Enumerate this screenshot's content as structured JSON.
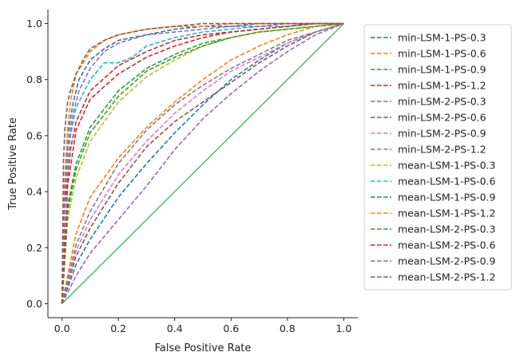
{
  "chart_data": {
    "type": "line",
    "title": "",
    "xlabel": "False Positive Rate",
    "ylabel": "True Positive Rate",
    "xlim": [
      -0.05,
      1.05
    ],
    "ylim": [
      -0.05,
      1.05
    ],
    "xticks": [
      "0.0",
      "0.2",
      "0.4",
      "0.6",
      "0.8",
      "1.0"
    ],
    "yticks": [
      "0.0",
      "0.2",
      "0.4",
      "0.6",
      "0.8",
      "1.0"
    ],
    "grid": false,
    "legend_position": "right, outside plot area",
    "diagonal": {
      "x": [
        0,
        1
      ],
      "y": [
        0,
        1
      ],
      "color": "#55c175",
      "style": "solid"
    },
    "series": [
      {
        "name": "min-LSM-1-PS-0.3",
        "color": "#1f77b4",
        "x": [
          0,
          0.05,
          0.1,
          0.2,
          0.3,
          0.4,
          0.5,
          0.6,
          0.7,
          0.8,
          0.9,
          1.0
        ],
        "y": [
          0,
          0.14,
          0.23,
          0.38,
          0.5,
          0.61,
          0.71,
          0.8,
          0.87,
          0.93,
          0.97,
          1.0
        ]
      },
      {
        "name": "min-LSM-1-PS-0.6",
        "color": "#ff7f0e",
        "x": [
          0,
          0.05,
          0.1,
          0.2,
          0.3,
          0.4,
          0.5,
          0.6,
          0.7,
          0.8,
          0.9,
          1.0
        ],
        "y": [
          0,
          0.25,
          0.38,
          0.52,
          0.63,
          0.72,
          0.8,
          0.87,
          0.92,
          0.96,
          0.99,
          1.0
        ]
      },
      {
        "name": "min-LSM-1-PS-0.9",
        "color": "#2ca02c",
        "x": [
          0,
          0.02,
          0.05,
          0.1,
          0.2,
          0.3,
          0.4,
          0.5,
          0.6,
          0.7,
          0.8,
          0.9,
          1.0
        ],
        "y": [
          0,
          0.35,
          0.5,
          0.63,
          0.76,
          0.84,
          0.89,
          0.93,
          0.95,
          0.97,
          0.98,
          0.99,
          1.0
        ]
      },
      {
        "name": "min-LSM-1-PS-1.2",
        "color": "#d62728",
        "x": [
          0,
          0.01,
          0.03,
          0.05,
          0.1,
          0.2,
          0.3,
          0.4,
          0.5,
          0.6,
          0.7,
          0.8,
          0.9,
          1.0
        ],
        "y": [
          0,
          0.35,
          0.55,
          0.65,
          0.76,
          0.85,
          0.9,
          0.94,
          0.96,
          0.97,
          0.98,
          0.99,
          1.0,
          1.0
        ]
      },
      {
        "name": "min-LSM-2-PS-0.3",
        "color": "#9467bd",
        "x": [
          0,
          0.05,
          0.1,
          0.2,
          0.3,
          0.4,
          0.5,
          0.6,
          0.7,
          0.8,
          0.9,
          1.0
        ],
        "y": [
          0,
          0.1,
          0.18,
          0.3,
          0.42,
          0.55,
          0.66,
          0.75,
          0.83,
          0.9,
          0.96,
          1.0
        ]
      },
      {
        "name": "min-LSM-2-PS-0.6",
        "color": "#8c564b",
        "x": [
          0,
          0.05,
          0.1,
          0.2,
          0.3,
          0.4,
          0.5,
          0.6,
          0.7,
          0.8,
          0.9,
          1.0
        ],
        "y": [
          0,
          0.17,
          0.27,
          0.43,
          0.56,
          0.65,
          0.72,
          0.79,
          0.86,
          0.92,
          0.97,
          1.0
        ]
      },
      {
        "name": "min-LSM-2-PS-0.9",
        "color": "#e377c2",
        "x": [
          0,
          0.05,
          0.1,
          0.2,
          0.3,
          0.4,
          0.5,
          0.6,
          0.7,
          0.8,
          0.9,
          1.0
        ],
        "y": [
          0,
          0.19,
          0.3,
          0.46,
          0.58,
          0.68,
          0.76,
          0.83,
          0.88,
          0.93,
          0.97,
          1.0
        ]
      },
      {
        "name": "min-LSM-2-PS-1.2",
        "color": "#7f7f7f",
        "x": [
          0,
          0.05,
          0.1,
          0.2,
          0.3,
          0.4,
          0.5,
          0.6,
          0.7,
          0.8,
          0.9,
          1.0
        ],
        "y": [
          0,
          0.21,
          0.33,
          0.5,
          0.62,
          0.71,
          0.78,
          0.84,
          0.89,
          0.94,
          0.97,
          1.0
        ]
      },
      {
        "name": "mean-LSM-1-PS-0.3",
        "color": "#bcbd22",
        "x": [
          0,
          0.02,
          0.05,
          0.1,
          0.2,
          0.3,
          0.4,
          0.5,
          0.6,
          0.7,
          0.8,
          0.9,
          1.0
        ],
        "y": [
          0,
          0.3,
          0.45,
          0.58,
          0.72,
          0.81,
          0.87,
          0.92,
          0.95,
          0.97,
          0.98,
          0.99,
          1.0
        ]
      },
      {
        "name": "mean-LSM-1-PS-0.6",
        "color": "#17becf",
        "x": [
          0,
          0.01,
          0.03,
          0.05,
          0.1,
          0.15,
          0.2,
          0.25,
          0.3,
          0.4,
          0.5,
          0.6,
          0.7,
          0.8,
          0.9,
          1.0
        ],
        "y": [
          0,
          0.4,
          0.6,
          0.7,
          0.8,
          0.86,
          0.86,
          0.88,
          0.92,
          0.95,
          0.97,
          0.98,
          0.99,
          0.99,
          1.0,
          1.0
        ]
      },
      {
        "name": "mean-LSM-1-PS-0.9",
        "color": "#1f77b4",
        "x": [
          0,
          0.01,
          0.02,
          0.04,
          0.06,
          0.1,
          0.15,
          0.2,
          0.3,
          0.4,
          0.5,
          0.6,
          0.7,
          0.8,
          0.9,
          1.0
        ],
        "y": [
          0,
          0.45,
          0.6,
          0.72,
          0.8,
          0.87,
          0.91,
          0.94,
          0.96,
          0.98,
          0.99,
          0.99,
          1.0,
          1.0,
          1.0,
          1.0
        ]
      },
      {
        "name": "mean-LSM-1-PS-1.2",
        "color": "#ff7f0e",
        "x": [
          0,
          0.01,
          0.02,
          0.03,
          0.05,
          0.1,
          0.15,
          0.2,
          0.3,
          0.4,
          0.5,
          0.6,
          0.7,
          0.8,
          0.9,
          1.0
        ],
        "y": [
          0,
          0.45,
          0.62,
          0.72,
          0.82,
          0.9,
          0.94,
          0.96,
          0.98,
          0.99,
          0.99,
          1.0,
          1.0,
          1.0,
          1.0,
          1.0
        ]
      },
      {
        "name": "mean-LSM-2-PS-0.3",
        "color": "#2ca02c",
        "x": [
          0,
          0.02,
          0.05,
          0.1,
          0.2,
          0.3,
          0.4,
          0.5,
          0.6,
          0.7,
          0.8,
          0.9,
          1.0
        ],
        "y": [
          0,
          0.33,
          0.48,
          0.61,
          0.74,
          0.83,
          0.88,
          0.92,
          0.95,
          0.97,
          0.98,
          0.99,
          1.0
        ]
      },
      {
        "name": "mean-LSM-2-PS-0.6",
        "color": "#d62728",
        "x": [
          0,
          0.02,
          0.05,
          0.1,
          0.2,
          0.3,
          0.4,
          0.5,
          0.6,
          0.7,
          0.8,
          0.9,
          1.0
        ],
        "y": [
          0,
          0.42,
          0.62,
          0.73,
          0.82,
          0.88,
          0.92,
          0.95,
          0.97,
          0.98,
          0.99,
          1.0,
          1.0
        ]
      },
      {
        "name": "mean-LSM-2-PS-0.9",
        "color": "#9467bd",
        "x": [
          0,
          0.01,
          0.02,
          0.04,
          0.06,
          0.1,
          0.15,
          0.2,
          0.3,
          0.4,
          0.5,
          0.6,
          0.7,
          0.8,
          0.9,
          1.0
        ],
        "y": [
          0,
          0.4,
          0.56,
          0.68,
          0.76,
          0.84,
          0.9,
          0.93,
          0.96,
          0.97,
          0.98,
          0.99,
          0.99,
          1.0,
          1.0,
          1.0
        ]
      },
      {
        "name": "mean-LSM-2-PS-1.2",
        "color": "#8c564b",
        "x": [
          0,
          0.005,
          0.01,
          0.02,
          0.03,
          0.05,
          0.08,
          0.1,
          0.15,
          0.2,
          0.3,
          0.4,
          0.5,
          0.6,
          0.7,
          0.8,
          0.9,
          1.0
        ],
        "y": [
          0,
          0.5,
          0.62,
          0.72,
          0.76,
          0.82,
          0.88,
          0.91,
          0.94,
          0.96,
          0.98,
          0.99,
          1.0,
          1.0,
          1.0,
          1.0,
          1.0,
          1.0
        ]
      }
    ]
  }
}
